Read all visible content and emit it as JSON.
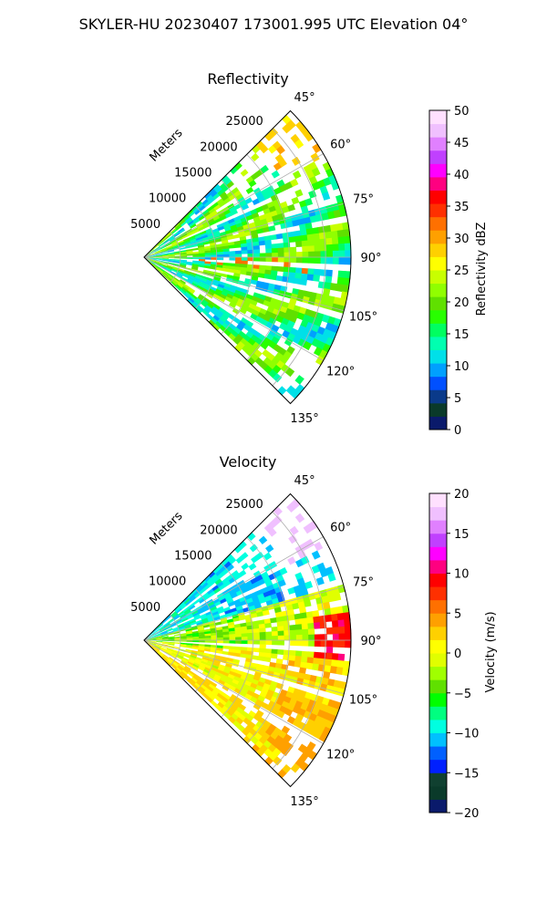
{
  "suptitle": "SKYLER-HU  20230407  173001.995 UTC Elevation 04°",
  "chart_data": [
    {
      "type": "heatmap",
      "subtype": "polar-sector-ppi",
      "title": "Reflectivity",
      "range_label": "Meters",
      "range_ticks": [
        "5000",
        "10000",
        "15000",
        "20000",
        "25000"
      ],
      "range_max": 28500,
      "angle_ticks": [
        "45°",
        "60°",
        "75°",
        "90°",
        "105°",
        "120°",
        "135°"
      ],
      "angle_range": [
        45,
        135
      ],
      "grid": true,
      "colorbar": {
        "label": "Reflectivity dBZ",
        "vmin": 0,
        "vmax": 50,
        "ticks": [
          "0",
          "5",
          "10",
          "15",
          "20",
          "25",
          "30",
          "35",
          "40",
          "45",
          "50"
        ],
        "colors": [
          "#0a1a6b",
          "#0a3a2a",
          "#0a3a8a",
          "#0050ff",
          "#00a0ff",
          "#00e0e8",
          "#00ffb0",
          "#00ff60",
          "#28ff00",
          "#60e000",
          "#90ff00",
          "#c8ff00",
          "#ffff00",
          "#ffd000",
          "#ffa000",
          "#ff7000",
          "#ff3000",
          "#ff0000",
          "#ff0080",
          "#ff00ff",
          "#c040ff",
          "#e080ff",
          "#f0c0ff",
          "#ffe0ff"
        ]
      },
      "dominant_value_range": [
        10,
        25
      ]
    },
    {
      "type": "heatmap",
      "subtype": "polar-sector-ppi",
      "title": "Velocity",
      "range_label": "Meters",
      "range_ticks": [
        "5000",
        "10000",
        "15000",
        "20000",
        "25000"
      ],
      "range_max": 28500,
      "angle_ticks": [
        "45°",
        "60°",
        "75°",
        "90°",
        "105°",
        "120°",
        "135°"
      ],
      "angle_range": [
        45,
        135
      ],
      "grid": true,
      "colorbar": {
        "label": "Velocity (m/s)",
        "vmin": -20,
        "vmax": 20,
        "ticks": [
          "−20",
          "−15",
          "−10",
          "−5",
          "0",
          "5",
          "10",
          "15",
          "20"
        ],
        "colors": [
          "#0a1a6b",
          "#0a3a2a",
          "#104030",
          "#0020ff",
          "#0060ff",
          "#00c0ff",
          "#00ffe0",
          "#00ff80",
          "#00ff00",
          "#60e000",
          "#a0ff00",
          "#e0ff00",
          "#ffff00",
          "#ffd000",
          "#ffa000",
          "#ff7000",
          "#ff3000",
          "#ff0000",
          "#ff0080",
          "#ff00ff",
          "#c040ff",
          "#e080ff",
          "#f0c0ff",
          "#ffe0ff"
        ]
      },
      "dominant_value_range": [
        -10,
        2
      ]
    }
  ]
}
